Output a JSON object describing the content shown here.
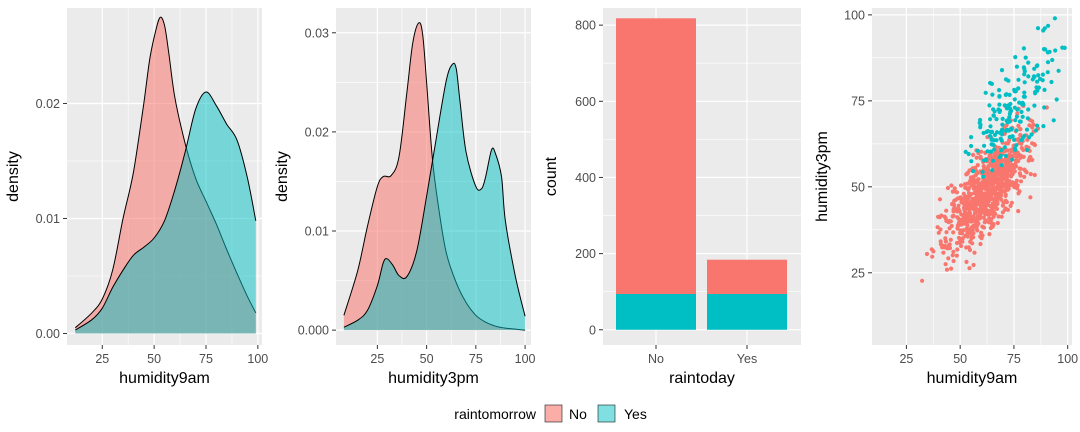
{
  "colors": {
    "No": "#F8766D",
    "Yes": "#00BFC4",
    "panel": "#EBEBEB",
    "grid": "#FFFFFF"
  },
  "legend": {
    "title": "raintomorrow",
    "entries": [
      "No",
      "Yes"
    ]
  },
  "chart_data": [
    {
      "type": "area",
      "xlabel": "humidity9am",
      "ylabel": "density",
      "xlim": [
        8,
        102
      ],
      "ylim": [
        -0.001,
        0.0283
      ],
      "xticks": [
        25,
        50,
        75,
        100
      ],
      "yticks": [
        0.0,
        0.01,
        0.02
      ],
      "ytick_labels": [
        "0.00",
        "0.01",
        "0.02"
      ],
      "series": [
        {
          "name": "No",
          "x": [
            12,
            20,
            25,
            30,
            35,
            40,
            45,
            48,
            51,
            53,
            55,
            57,
            60,
            65,
            70,
            75,
            80,
            85,
            90,
            95,
            99
          ],
          "y": [
            0.0005,
            0.0018,
            0.003,
            0.0055,
            0.01,
            0.014,
            0.02,
            0.024,
            0.0265,
            0.0275,
            0.0268,
            0.0245,
            0.0205,
            0.0165,
            0.0135,
            0.0115,
            0.0095,
            0.0073,
            0.0052,
            0.0032,
            0.0018
          ]
        },
        {
          "name": "Yes",
          "x": [
            12,
            20,
            25,
            30,
            35,
            40,
            45,
            50,
            55,
            60,
            65,
            70,
            75,
            80,
            85,
            90,
            95,
            99
          ],
          "y": [
            0.0003,
            0.0012,
            0.0022,
            0.004,
            0.0055,
            0.0068,
            0.0075,
            0.0083,
            0.0098,
            0.0125,
            0.0158,
            0.0195,
            0.021,
            0.0198,
            0.0182,
            0.0168,
            0.0135,
            0.0098
          ]
        }
      ]
    },
    {
      "type": "area",
      "xlabel": "humidity3pm",
      "ylabel": "density",
      "xlim": [
        4,
        103
      ],
      "ylim": [
        -0.0015,
        0.0325
      ],
      "xticks": [
        25,
        50,
        75,
        100
      ],
      "yticks": [
        0.0,
        0.01,
        0.02,
        0.03
      ],
      "ytick_labels": [
        "0.000",
        "0.01",
        "0.02",
        "0.03"
      ],
      "series": [
        {
          "name": "No",
          "x": [
            8,
            15,
            20,
            25,
            28,
            32,
            36,
            40,
            43,
            46,
            48,
            50,
            53,
            56,
            60,
            65,
            70,
            75,
            80,
            85,
            90,
            95,
            100
          ],
          "y": [
            0.0015,
            0.006,
            0.0105,
            0.0145,
            0.0155,
            0.0156,
            0.0175,
            0.024,
            0.029,
            0.031,
            0.0298,
            0.025,
            0.0172,
            0.0125,
            0.0078,
            0.0048,
            0.0028,
            0.0015,
            0.0008,
            0.0004,
            0.0002,
            0.0001,
            0.0
          ]
        },
        {
          "name": "Yes",
          "x": [
            8,
            15,
            20,
            25,
            28,
            30,
            33,
            36,
            40,
            45,
            50,
            55,
            60,
            63,
            65,
            67,
            70,
            75,
            78,
            80,
            83,
            85,
            88,
            90,
            95,
            100
          ],
          "y": [
            0.0003,
            0.001,
            0.002,
            0.0045,
            0.0068,
            0.0072,
            0.0065,
            0.0055,
            0.0054,
            0.008,
            0.0135,
            0.0195,
            0.0252,
            0.0268,
            0.0264,
            0.023,
            0.018,
            0.0145,
            0.0143,
            0.0155,
            0.0182,
            0.0178,
            0.0155,
            0.011,
            0.0055,
            0.0014
          ]
        }
      ]
    },
    {
      "type": "bar",
      "stacked": true,
      "xlabel": "raintoday",
      "ylabel": "count",
      "categories": [
        "No",
        "Yes"
      ],
      "ylim": [
        -40,
        845
      ],
      "yticks": [
        0,
        200,
        400,
        600,
        800
      ],
      "series": [
        {
          "name": "No",
          "values": [
            724,
            90
          ]
        },
        {
          "name": "Yes",
          "values": [
            94,
            94
          ]
        }
      ]
    },
    {
      "type": "scatter",
      "xlabel": "humidity9am",
      "ylabel": "humidity3pm",
      "xlim": [
        9,
        102
      ],
      "ylim": [
        4,
        102
      ],
      "xticks": [
        25,
        50,
        75,
        100
      ],
      "yticks": [
        25,
        50,
        75,
        100
      ],
      "points_approx": {
        "No": 815,
        "Yes": 185
      },
      "trend": "positive"
    }
  ]
}
